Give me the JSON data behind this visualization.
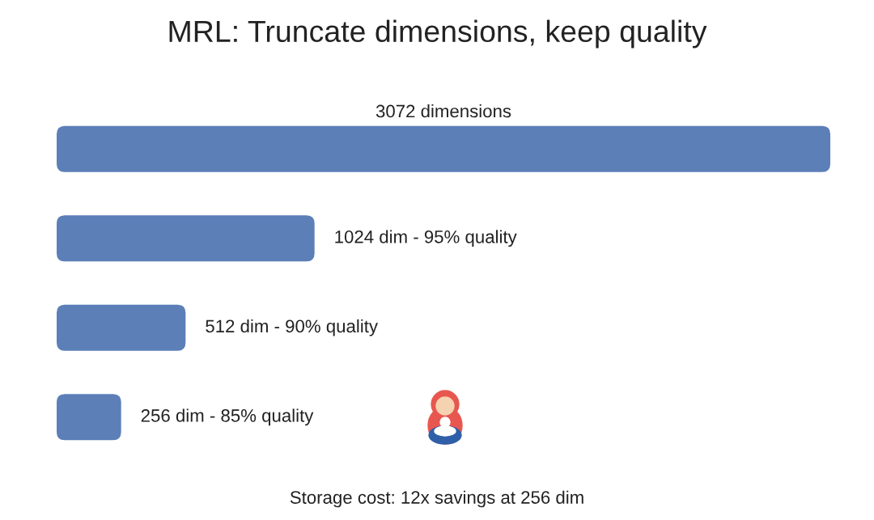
{
  "chart_data": {
    "type": "bar",
    "orientation": "horizontal",
    "title": "MRL: Truncate dimensions, keep quality",
    "categories": [
      null,
      null,
      null,
      null
    ],
    "values": [
      3072,
      1024,
      512,
      256
    ],
    "value_labels": [
      "3072 dimensions",
      "1024 dim - 95% quality",
      "512 dim - 90% quality",
      "256 dim - 85% quality"
    ],
    "color": "#5c7fb8",
    "annotations": [
      "Storage cost: 12x savings at 256 dim"
    ],
    "tick_labels": false
  }
}
